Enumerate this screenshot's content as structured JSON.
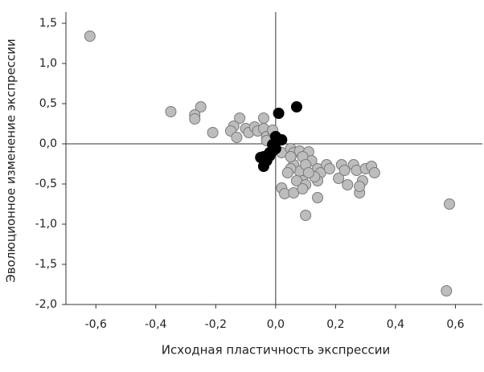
{
  "chart_data": {
    "type": "scatter",
    "xlabel": "Исходная пластичность экспрессии",
    "ylabel": "Эволюционное изменение экспрессии",
    "xlim": [
      -0.7,
      0.69
    ],
    "ylim": [
      -2.0,
      1.64
    ],
    "xticks": [
      {
        "value": -0.6,
        "label": "-0,6"
      },
      {
        "value": -0.4,
        "label": "-0,4"
      },
      {
        "value": -0.2,
        "label": "-0,2"
      },
      {
        "value": 0,
        "label": "0,0"
      },
      {
        "value": 0.2,
        "label": "0,2"
      },
      {
        "value": 0.4,
        "label": "0,4"
      },
      {
        "value": 0.6,
        "label": "0,6"
      }
    ],
    "yticks": [
      {
        "value": 1.5,
        "label": "1,5"
      },
      {
        "value": 1,
        "label": "1,0"
      },
      {
        "value": 0.5,
        "label": "0,5"
      },
      {
        "value": 0,
        "label": "0,0"
      },
      {
        "value": -0.5,
        "label": "-0,5"
      },
      {
        "value": -1,
        "label": "-1,0"
      },
      {
        "value": -1.5,
        "label": "-1,5"
      },
      {
        "value": -2,
        "label": "-2,0"
      }
    ],
    "series": [
      {
        "color": "#bdbdbd",
        "x": [
          -0.62,
          -0.35,
          -0.25,
          -0.27,
          -0.27,
          -0.21,
          -0.12,
          -0.14,
          -0.15,
          -0.13,
          -0.1,
          -0.09,
          -0.07,
          -0.06,
          -0.04,
          -0.04,
          -0.03,
          -0.01,
          -0.01,
          -0.03,
          0.02,
          0.05,
          0.06,
          0.08,
          0.11,
          0.12,
          0.09,
          0.06,
          0.08,
          0.05,
          0.04,
          0.05,
          0.1,
          0.14,
          0.15,
          0.14,
          0.13,
          0.09,
          0.07,
          0.1,
          0.11,
          0.17,
          0.18,
          0.21,
          0.22,
          0.23,
          0.26,
          0.27,
          0.3,
          0.32,
          0.33,
          0.29,
          0.28,
          0.28,
          0.24,
          0.02,
          0.03,
          0.06,
          0.09,
          0.14,
          0.1,
          0.58,
          0.57
        ],
        "y": [
          1.34,
          0.4,
          0.46,
          0.36,
          0.31,
          0.14,
          0.32,
          0.22,
          0.16,
          0.08,
          0.19,
          0.14,
          0.21,
          0.16,
          0.32,
          0.19,
          0.09,
          0.16,
          0.17,
          0.04,
          -0.11,
          -0.06,
          -0.11,
          -0.09,
          -0.1,
          -0.21,
          -0.16,
          -0.26,
          -0.34,
          -0.31,
          -0.36,
          -0.16,
          -0.26,
          -0.31,
          -0.36,
          -0.46,
          -0.41,
          -0.46,
          -0.46,
          -0.51,
          -0.36,
          -0.26,
          -0.31,
          -0.43,
          -0.26,
          -0.33,
          -0.26,
          -0.33,
          -0.31,
          -0.28,
          -0.36,
          -0.46,
          -0.61,
          -0.53,
          -0.51,
          -0.55,
          -0.62,
          -0.61,
          -0.56,
          -0.67,
          -0.89,
          -0.75,
          -1.83
        ]
      },
      {
        "color": "#000000",
        "x": [
          0.01,
          0.07,
          0.0,
          0.02,
          0.0,
          -0.01,
          -0.01,
          -0.02,
          -0.03,
          -0.04,
          -0.03,
          -0.04,
          -0.05,
          -0.02
        ],
        "y": [
          0.38,
          0.46,
          0.09,
          0.05,
          -0.06,
          -0.01,
          -0.09,
          -0.11,
          -0.16,
          -0.16,
          -0.21,
          -0.28,
          -0.17,
          -0.15
        ]
      }
    ]
  }
}
